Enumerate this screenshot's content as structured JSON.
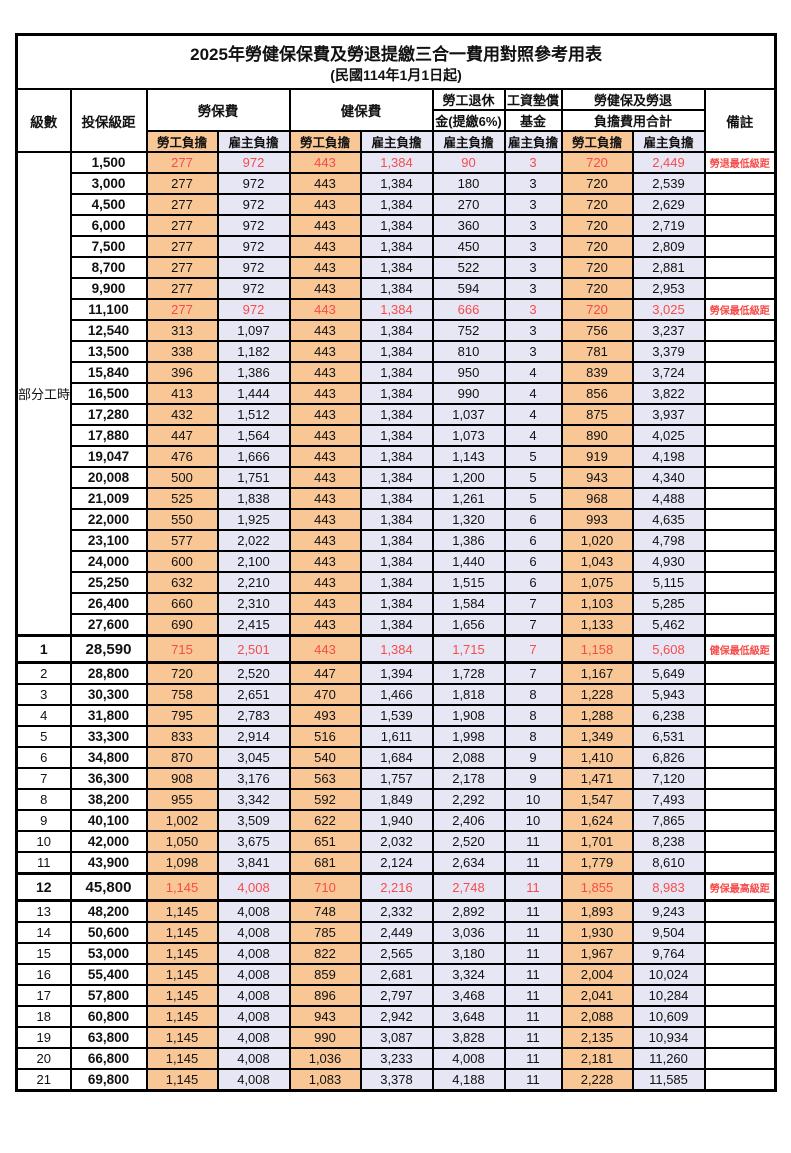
{
  "title": "2025年勞健保保費及勞退提繳三合一費用對照參考用表",
  "subtitle": "(民國114年1月1日起)",
  "header": {
    "level": "級數",
    "bracket": "投保級距",
    "labor_insurance": "勞保費",
    "health_insurance": "健保費",
    "pension_line1": "勞工退休",
    "pension_line2": "金(提繳6%)",
    "wage_fund_line1": "工資墊償",
    "wage_fund_line2": "基金",
    "total_line1": "勞健保及勞退",
    "total_line2": "負擔費用合計",
    "remark": "備註",
    "employee_label": "勞工負擔",
    "employer_label": "雇主負擔"
  },
  "part_time_label": "部分工時",
  "colors": {
    "employee_bg": "#f9c795",
    "employer_bg": "#e7e6f4",
    "highlight_text": "#f64c4a"
  },
  "rows": [
    {
      "level": "",
      "bracket": "1,500",
      "labor_emp": "277",
      "labor_er": "972",
      "health_emp": "443",
      "health_er": "1,384",
      "pension_er": "90",
      "fund_er": "3",
      "total_emp": "720",
      "total_er": "2,449",
      "note": "勞退最低級距",
      "highlight": true,
      "key": false
    },
    {
      "level": "",
      "bracket": "3,000",
      "labor_emp": "277",
      "labor_er": "972",
      "health_emp": "443",
      "health_er": "1,384",
      "pension_er": "180",
      "fund_er": "3",
      "total_emp": "720",
      "total_er": "2,539",
      "note": "",
      "highlight": false,
      "key": false
    },
    {
      "level": "",
      "bracket": "4,500",
      "labor_emp": "277",
      "labor_er": "972",
      "health_emp": "443",
      "health_er": "1,384",
      "pension_er": "270",
      "fund_er": "3",
      "total_emp": "720",
      "total_er": "2,629",
      "note": "",
      "highlight": false,
      "key": false
    },
    {
      "level": "",
      "bracket": "6,000",
      "labor_emp": "277",
      "labor_er": "972",
      "health_emp": "443",
      "health_er": "1,384",
      "pension_er": "360",
      "fund_er": "3",
      "total_emp": "720",
      "total_er": "2,719",
      "note": "",
      "highlight": false,
      "key": false
    },
    {
      "level": "",
      "bracket": "7,500",
      "labor_emp": "277",
      "labor_er": "972",
      "health_emp": "443",
      "health_er": "1,384",
      "pension_er": "450",
      "fund_er": "3",
      "total_emp": "720",
      "total_er": "2,809",
      "note": "",
      "highlight": false,
      "key": false
    },
    {
      "level": "",
      "bracket": "8,700",
      "labor_emp": "277",
      "labor_er": "972",
      "health_emp": "443",
      "health_er": "1,384",
      "pension_er": "522",
      "fund_er": "3",
      "total_emp": "720",
      "total_er": "2,881",
      "note": "",
      "highlight": false,
      "key": false
    },
    {
      "level": "",
      "bracket": "9,900",
      "labor_emp": "277",
      "labor_er": "972",
      "health_emp": "443",
      "health_er": "1,384",
      "pension_er": "594",
      "fund_er": "3",
      "total_emp": "720",
      "total_er": "2,953",
      "note": "",
      "highlight": false,
      "key": false
    },
    {
      "level": "",
      "bracket": "11,100",
      "labor_emp": "277",
      "labor_er": "972",
      "health_emp": "443",
      "health_er": "1,384",
      "pension_er": "666",
      "fund_er": "3",
      "total_emp": "720",
      "total_er": "3,025",
      "note": "勞保最低級距",
      "highlight": true,
      "key": false
    },
    {
      "level": "",
      "bracket": "12,540",
      "labor_emp": "313",
      "labor_er": "1,097",
      "health_emp": "443",
      "health_er": "1,384",
      "pension_er": "752",
      "fund_er": "3",
      "total_emp": "756",
      "total_er": "3,237",
      "note": "",
      "highlight": false,
      "key": false
    },
    {
      "level": "",
      "bracket": "13,500",
      "labor_emp": "338",
      "labor_er": "1,182",
      "health_emp": "443",
      "health_er": "1,384",
      "pension_er": "810",
      "fund_er": "3",
      "total_emp": "781",
      "total_er": "3,379",
      "note": "",
      "highlight": false,
      "key": false
    },
    {
      "level": "",
      "bracket": "15,840",
      "labor_emp": "396",
      "labor_er": "1,386",
      "health_emp": "443",
      "health_er": "1,384",
      "pension_er": "950",
      "fund_er": "4",
      "total_emp": "839",
      "total_er": "3,724",
      "note": "",
      "highlight": false,
      "key": false
    },
    {
      "level": "",
      "bracket": "16,500",
      "labor_emp": "413",
      "labor_er": "1,444",
      "health_emp": "443",
      "health_er": "1,384",
      "pension_er": "990",
      "fund_er": "4",
      "total_emp": "856",
      "total_er": "3,822",
      "note": "",
      "highlight": false,
      "key": false
    },
    {
      "level": "",
      "bracket": "17,280",
      "labor_emp": "432",
      "labor_er": "1,512",
      "health_emp": "443",
      "health_er": "1,384",
      "pension_er": "1,037",
      "fund_er": "4",
      "total_emp": "875",
      "total_er": "3,937",
      "note": "",
      "highlight": false,
      "key": false
    },
    {
      "level": "",
      "bracket": "17,880",
      "labor_emp": "447",
      "labor_er": "1,564",
      "health_emp": "443",
      "health_er": "1,384",
      "pension_er": "1,073",
      "fund_er": "4",
      "total_emp": "890",
      "total_er": "4,025",
      "note": "",
      "highlight": false,
      "key": false
    },
    {
      "level": "",
      "bracket": "19,047",
      "labor_emp": "476",
      "labor_er": "1,666",
      "health_emp": "443",
      "health_er": "1,384",
      "pension_er": "1,143",
      "fund_er": "5",
      "total_emp": "919",
      "total_er": "4,198",
      "note": "",
      "highlight": false,
      "key": false
    },
    {
      "level": "",
      "bracket": "20,008",
      "labor_emp": "500",
      "labor_er": "1,751",
      "health_emp": "443",
      "health_er": "1,384",
      "pension_er": "1,200",
      "fund_er": "5",
      "total_emp": "943",
      "total_er": "4,340",
      "note": "",
      "highlight": false,
      "key": false
    },
    {
      "level": "",
      "bracket": "21,009",
      "labor_emp": "525",
      "labor_er": "1,838",
      "health_emp": "443",
      "health_er": "1,384",
      "pension_er": "1,261",
      "fund_er": "5",
      "total_emp": "968",
      "total_er": "4,488",
      "note": "",
      "highlight": false,
      "key": false
    },
    {
      "level": "",
      "bracket": "22,000",
      "labor_emp": "550",
      "labor_er": "1,925",
      "health_emp": "443",
      "health_er": "1,384",
      "pension_er": "1,320",
      "fund_er": "6",
      "total_emp": "993",
      "total_er": "4,635",
      "note": "",
      "highlight": false,
      "key": false
    },
    {
      "level": "",
      "bracket": "23,100",
      "labor_emp": "577",
      "labor_er": "2,022",
      "health_emp": "443",
      "health_er": "1,384",
      "pension_er": "1,386",
      "fund_er": "6",
      "total_emp": "1,020",
      "total_er": "4,798",
      "note": "",
      "highlight": false,
      "key": false
    },
    {
      "level": "",
      "bracket": "24,000",
      "labor_emp": "600",
      "labor_er": "2,100",
      "health_emp": "443",
      "health_er": "1,384",
      "pension_er": "1,440",
      "fund_er": "6",
      "total_emp": "1,043",
      "total_er": "4,930",
      "note": "",
      "highlight": false,
      "key": false
    },
    {
      "level": "",
      "bracket": "25,250",
      "labor_emp": "632",
      "labor_er": "2,210",
      "health_emp": "443",
      "health_er": "1,384",
      "pension_er": "1,515",
      "fund_er": "6",
      "total_emp": "1,075",
      "total_er": "5,115",
      "note": "",
      "highlight": false,
      "key": false
    },
    {
      "level": "",
      "bracket": "26,400",
      "labor_emp": "660",
      "labor_er": "2,310",
      "health_emp": "443",
      "health_er": "1,384",
      "pension_er": "1,584",
      "fund_er": "7",
      "total_emp": "1,103",
      "total_er": "5,285",
      "note": "",
      "highlight": false,
      "key": false
    },
    {
      "level": "",
      "bracket": "27,600",
      "labor_emp": "690",
      "labor_er": "2,415",
      "health_emp": "443",
      "health_er": "1,384",
      "pension_er": "1,656",
      "fund_er": "7",
      "total_emp": "1,133",
      "total_er": "5,462",
      "note": "",
      "highlight": false,
      "key": false
    },
    {
      "level": "1",
      "bracket": "28,590",
      "labor_emp": "715",
      "labor_er": "2,501",
      "health_emp": "443",
      "health_er": "1,384",
      "pension_er": "1,715",
      "fund_er": "7",
      "total_emp": "1,158",
      "total_er": "5,608",
      "note": "健保最低級距",
      "highlight": true,
      "key": true
    },
    {
      "level": "2",
      "bracket": "28,800",
      "labor_emp": "720",
      "labor_er": "2,520",
      "health_emp": "447",
      "health_er": "1,394",
      "pension_er": "1,728",
      "fund_er": "7",
      "total_emp": "1,167",
      "total_er": "5,649",
      "note": "",
      "highlight": false,
      "key": false
    },
    {
      "level": "3",
      "bracket": "30,300",
      "labor_emp": "758",
      "labor_er": "2,651",
      "health_emp": "470",
      "health_er": "1,466",
      "pension_er": "1,818",
      "fund_er": "8",
      "total_emp": "1,228",
      "total_er": "5,943",
      "note": "",
      "highlight": false,
      "key": false
    },
    {
      "level": "4",
      "bracket": "31,800",
      "labor_emp": "795",
      "labor_er": "2,783",
      "health_emp": "493",
      "health_er": "1,539",
      "pension_er": "1,908",
      "fund_er": "8",
      "total_emp": "1,288",
      "total_er": "6,238",
      "note": "",
      "highlight": false,
      "key": false
    },
    {
      "level": "5",
      "bracket": "33,300",
      "labor_emp": "833",
      "labor_er": "2,914",
      "health_emp": "516",
      "health_er": "1,611",
      "pension_er": "1,998",
      "fund_er": "8",
      "total_emp": "1,349",
      "total_er": "6,531",
      "note": "",
      "highlight": false,
      "key": false
    },
    {
      "level": "6",
      "bracket": "34,800",
      "labor_emp": "870",
      "labor_er": "3,045",
      "health_emp": "540",
      "health_er": "1,684",
      "pension_er": "2,088",
      "fund_er": "9",
      "total_emp": "1,410",
      "total_er": "6,826",
      "note": "",
      "highlight": false,
      "key": false
    },
    {
      "level": "7",
      "bracket": "36,300",
      "labor_emp": "908",
      "labor_er": "3,176",
      "health_emp": "563",
      "health_er": "1,757",
      "pension_er": "2,178",
      "fund_er": "9",
      "total_emp": "1,471",
      "total_er": "7,120",
      "note": "",
      "highlight": false,
      "key": false
    },
    {
      "level": "8",
      "bracket": "38,200",
      "labor_emp": "955",
      "labor_er": "3,342",
      "health_emp": "592",
      "health_er": "1,849",
      "pension_er": "2,292",
      "fund_er": "10",
      "total_emp": "1,547",
      "total_er": "7,493",
      "note": "",
      "highlight": false,
      "key": false
    },
    {
      "level": "9",
      "bracket": "40,100",
      "labor_emp": "1,002",
      "labor_er": "3,509",
      "health_emp": "622",
      "health_er": "1,940",
      "pension_er": "2,406",
      "fund_er": "10",
      "total_emp": "1,624",
      "total_er": "7,865",
      "note": "",
      "highlight": false,
      "key": false
    },
    {
      "level": "10",
      "bracket": "42,000",
      "labor_emp": "1,050",
      "labor_er": "3,675",
      "health_emp": "651",
      "health_er": "2,032",
      "pension_er": "2,520",
      "fund_er": "11",
      "total_emp": "1,701",
      "total_er": "8,238",
      "note": "",
      "highlight": false,
      "key": false
    },
    {
      "level": "11",
      "bracket": "43,900",
      "labor_emp": "1,098",
      "labor_er": "3,841",
      "health_emp": "681",
      "health_er": "2,124",
      "pension_er": "2,634",
      "fund_er": "11",
      "total_emp": "1,779",
      "total_er": "8,610",
      "note": "",
      "highlight": false,
      "key": false
    },
    {
      "level": "12",
      "bracket": "45,800",
      "labor_emp": "1,145",
      "labor_er": "4,008",
      "health_emp": "710",
      "health_er": "2,216",
      "pension_er": "2,748",
      "fund_er": "11",
      "total_emp": "1,855",
      "total_er": "8,983",
      "note": "勞保最高級距",
      "highlight": true,
      "key": true
    },
    {
      "level": "13",
      "bracket": "48,200",
      "labor_emp": "1,145",
      "labor_er": "4,008",
      "health_emp": "748",
      "health_er": "2,332",
      "pension_er": "2,892",
      "fund_er": "11",
      "total_emp": "1,893",
      "total_er": "9,243",
      "note": "",
      "highlight": false,
      "key": false
    },
    {
      "level": "14",
      "bracket": "50,600",
      "labor_emp": "1,145",
      "labor_er": "4,008",
      "health_emp": "785",
      "health_er": "2,449",
      "pension_er": "3,036",
      "fund_er": "11",
      "total_emp": "1,930",
      "total_er": "9,504",
      "note": "",
      "highlight": false,
      "key": false
    },
    {
      "level": "15",
      "bracket": "53,000",
      "labor_emp": "1,145",
      "labor_er": "4,008",
      "health_emp": "822",
      "health_er": "2,565",
      "pension_er": "3,180",
      "fund_er": "11",
      "total_emp": "1,967",
      "total_er": "9,764",
      "note": "",
      "highlight": false,
      "key": false
    },
    {
      "level": "16",
      "bracket": "55,400",
      "labor_emp": "1,145",
      "labor_er": "4,008",
      "health_emp": "859",
      "health_er": "2,681",
      "pension_er": "3,324",
      "fund_er": "11",
      "total_emp": "2,004",
      "total_er": "10,024",
      "note": "",
      "highlight": false,
      "key": false
    },
    {
      "level": "17",
      "bracket": "57,800",
      "labor_emp": "1,145",
      "labor_er": "4,008",
      "health_emp": "896",
      "health_er": "2,797",
      "pension_er": "3,468",
      "fund_er": "11",
      "total_emp": "2,041",
      "total_er": "10,284",
      "note": "",
      "highlight": false,
      "key": false
    },
    {
      "level": "18",
      "bracket": "60,800",
      "labor_emp": "1,145",
      "labor_er": "4,008",
      "health_emp": "943",
      "health_er": "2,942",
      "pension_er": "3,648",
      "fund_er": "11",
      "total_emp": "2,088",
      "total_er": "10,609",
      "note": "",
      "highlight": false,
      "key": false
    },
    {
      "level": "19",
      "bracket": "63,800",
      "labor_emp": "1,145",
      "labor_er": "4,008",
      "health_emp": "990",
      "health_er": "3,087",
      "pension_er": "3,828",
      "fund_er": "11",
      "total_emp": "2,135",
      "total_er": "10,934",
      "note": "",
      "highlight": false,
      "key": false
    },
    {
      "level": "20",
      "bracket": "66,800",
      "labor_emp": "1,145",
      "labor_er": "4,008",
      "health_emp": "1,036",
      "health_er": "3,233",
      "pension_er": "4,008",
      "fund_er": "11",
      "total_emp": "2,181",
      "total_er": "11,260",
      "note": "",
      "highlight": false,
      "key": false
    },
    {
      "level": "21",
      "bracket": "69,800",
      "labor_emp": "1,145",
      "labor_er": "4,008",
      "health_emp": "1,083",
      "health_er": "3,378",
      "pension_er": "4,188",
      "fund_er": "11",
      "total_emp": "2,228",
      "total_er": "11,585",
      "note": "",
      "highlight": false,
      "key": false
    }
  ]
}
